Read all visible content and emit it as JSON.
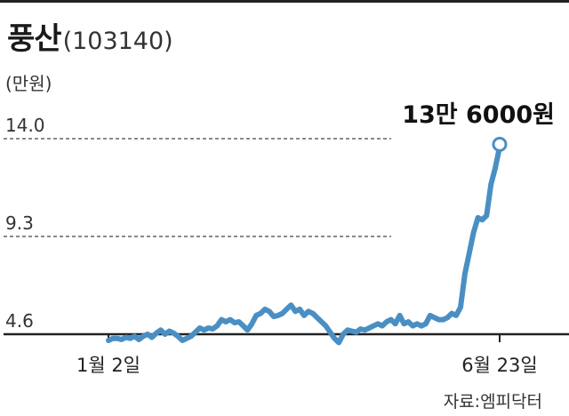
{
  "title": {
    "name": "풍산",
    "code": "(103140)"
  },
  "unit_label": "(만원)",
  "source": "자료:엠피닥터",
  "colors": {
    "line": "#4a8fc3",
    "grid": "#444444",
    "axis": "#222222"
  },
  "chart_data": {
    "type": "line",
    "title": "풍산(103140)",
    "ylabel": "(만원)",
    "y_ticks": [
      "14.0",
      "9.3",
      "4.6"
    ],
    "y_tick_values": [
      14.0,
      9.3,
      4.6
    ],
    "ylim": [
      4.0,
      14.0
    ],
    "x_tick_labels": [
      "1월 2일",
      "6월 23일"
    ],
    "x_range": [
      "1월 2일",
      "6월 23일"
    ],
    "series": [
      {
        "values": [
          4.3,
          4.4,
          4.4,
          4.35,
          4.45,
          4.4,
          4.5,
          4.35,
          4.5,
          4.6,
          4.45,
          4.65,
          4.8,
          4.6,
          4.75,
          4.65,
          4.5,
          4.3,
          4.4,
          4.5,
          4.7,
          4.9,
          4.8,
          4.9,
          4.85,
          5.0,
          5.3,
          5.2,
          5.3,
          5.15,
          5.2,
          5.0,
          4.8,
          5.1,
          5.5,
          5.6,
          5.8,
          5.7,
          5.45,
          5.5,
          5.6,
          5.8,
          6.0,
          5.7,
          5.8,
          5.5,
          5.7,
          5.6,
          5.4,
          5.2,
          5.0,
          4.7,
          4.4,
          4.2,
          4.6,
          4.8,
          4.75,
          4.7,
          4.85,
          4.8,
          4.9,
          5.0,
          5.1,
          5.0,
          5.2,
          5.3,
          5.1,
          5.5,
          5.1,
          5.2,
          5.0,
          5.1,
          5.0,
          5.1,
          5.5,
          5.4,
          5.3,
          5.3,
          5.4,
          5.6,
          5.5,
          5.9,
          7.5,
          8.5,
          9.5,
          10.2,
          10.1,
          10.3,
          11.8,
          12.6,
          13.6
        ]
      }
    ],
    "annotations": [
      {
        "text": "13만 6000원",
        "target": "last_point"
      }
    ],
    "grid": true
  }
}
